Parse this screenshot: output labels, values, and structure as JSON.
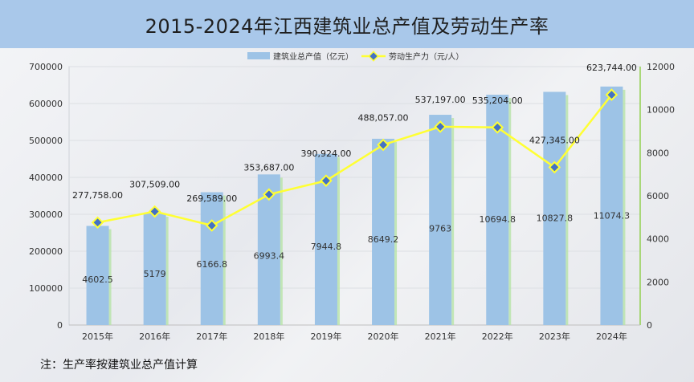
{
  "page": {
    "title": "2015-2024年江西建筑业总产值及劳动生产率",
    "note": "注：生产率按建筑业总产值计算"
  },
  "chart_data": {
    "type": "bar",
    "categories": [
      "2015年",
      "2016年",
      "2017年",
      "2018年",
      "2019年",
      "2020年",
      "2021年",
      "2022年",
      "2023年",
      "2024年"
    ],
    "series": [
      {
        "name": "建筑业总产值（亿元）",
        "type": "bar",
        "axis": "right",
        "values": [
          4602.5,
          5179,
          6166.8,
          6993.4,
          7944.8,
          8649.2,
          9763,
          10694.8,
          10827.8,
          11074.3
        ],
        "labels": [
          "4602.5",
          "5179",
          "6166.8",
          "6993.4",
          "7944.8",
          "8649.2",
          "9763",
          "10694.8",
          "10827.8",
          "11074.3"
        ],
        "color": "#9dc3e6"
      },
      {
        "name": "劳动生产力（元/人）",
        "type": "line",
        "axis": "left",
        "values": [
          277758,
          307509,
          269589,
          353687,
          390924,
          488057,
          537197,
          535204,
          427345,
          623744
        ],
        "labels": [
          "277,758.00",
          "307,509.00",
          "269,589.00",
          "353,687.00",
          "390,924.00",
          "488,057.00",
          "537,197.00",
          "535,204.00",
          "427,345.00",
          "623,744.00"
        ],
        "color": "#ffff33",
        "marker_color": "#4472c4"
      }
    ],
    "left_axis": {
      "min": 0,
      "max": 700000,
      "ticks": [
        "0",
        "100000",
        "200000",
        "300000",
        "400000",
        "500000",
        "600000",
        "700000"
      ]
    },
    "right_axis": {
      "min": 0,
      "max": 12000,
      "ticks": [
        "0",
        "2000",
        "4000",
        "6000",
        "8000",
        "10000",
        "12000"
      ]
    },
    "legend": {
      "position": "top"
    }
  }
}
